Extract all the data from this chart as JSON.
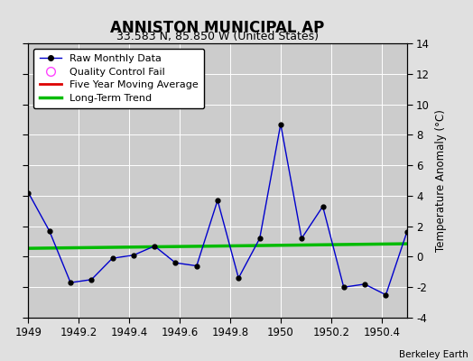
{
  "title": "ANNISTON MUNICIPAL AP",
  "subtitle": "33.583 N, 85.850 W (United States)",
  "credit": "Berkeley Earth",
  "raw_x": [
    1949.0,
    1949.083,
    1949.167,
    1949.25,
    1949.333,
    1949.417,
    1949.5,
    1949.583,
    1949.667,
    1949.75,
    1949.833,
    1949.917,
    1950.0,
    1950.083,
    1950.167,
    1950.25,
    1950.333,
    1950.417,
    1950.5
  ],
  "raw_y": [
    4.2,
    1.7,
    -1.7,
    -1.5,
    -0.1,
    0.1,
    0.7,
    -0.4,
    -0.6,
    3.7,
    -1.4,
    1.2,
    8.7,
    1.2,
    3.3,
    -2.0,
    -1.8,
    -2.5,
    1.6
  ],
  "trend_x": [
    1949.0,
    1950.5
  ],
  "trend_y": [
    0.55,
    0.85
  ],
  "xlim": [
    1949.0,
    1950.5
  ],
  "ylim": [
    -4,
    14
  ],
  "yticks": [
    -4,
    -2,
    0,
    2,
    4,
    6,
    8,
    10,
    12,
    14
  ],
  "xticks": [
    1949,
    1949.2,
    1949.4,
    1949.6,
    1949.8,
    1950,
    1950.2,
    1950.4
  ],
  "xtick_labels": [
    "1949",
    "1949.2",
    "1949.4",
    "1949.6",
    "1949.8",
    "1950",
    "1950.2",
    "1950.4"
  ],
  "raw_color": "#0000cc",
  "trend_color": "#00bb00",
  "moving_avg_color": "#dd0000",
  "qc_fail_color": "#ff44ff",
  "bg_color": "#e0e0e0",
  "plot_bg_color": "#cccccc",
  "ylabel_right": "Temperature Anomaly (°C)",
  "legend_labels": [
    "Raw Monthly Data",
    "Quality Control Fail",
    "Five Year Moving Average",
    "Long-Term Trend"
  ]
}
